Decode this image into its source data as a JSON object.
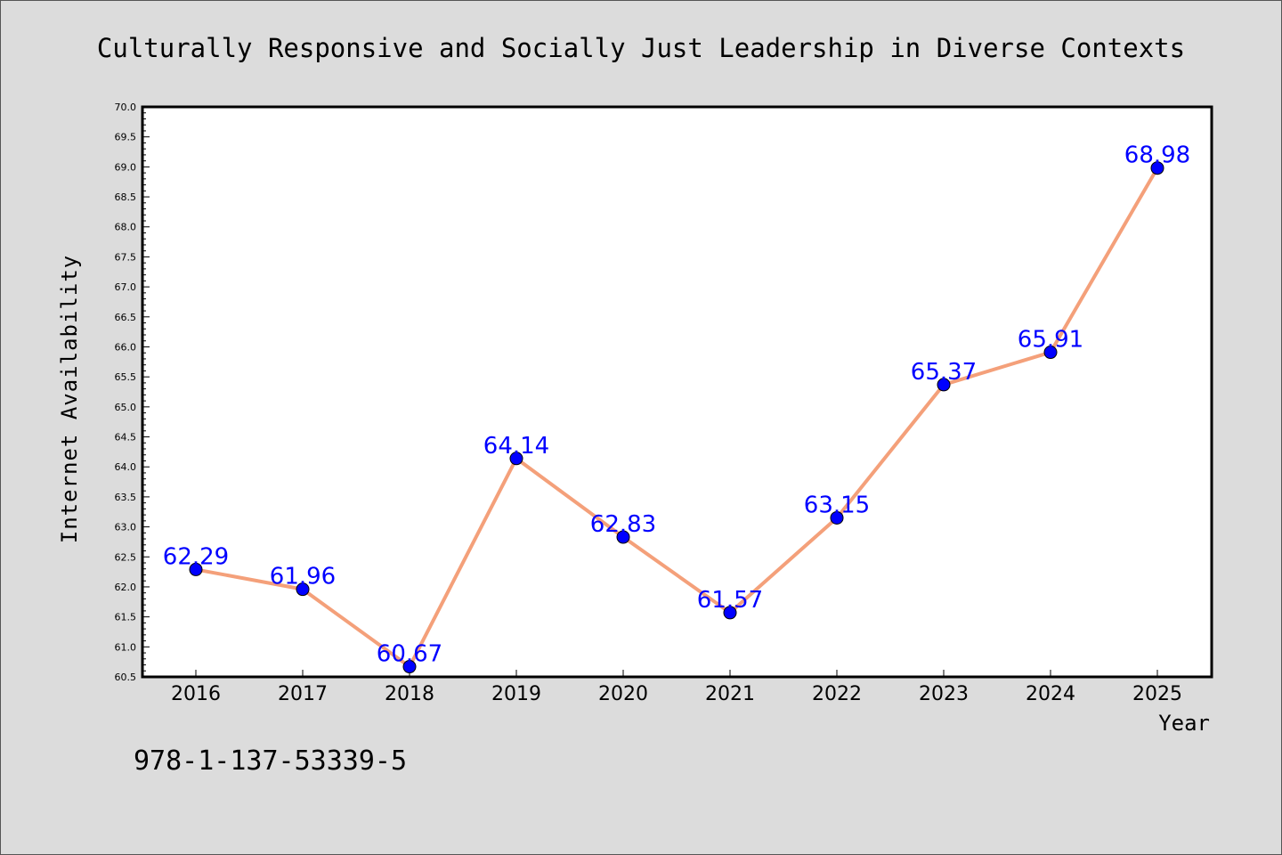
{
  "chart_data": {
    "type": "line",
    "title": "Culturally Responsive and Socially Just Leadership in Diverse Contexts",
    "xlabel": "Year",
    "ylabel": "Internet Availability",
    "categories": [
      "2016",
      "2017",
      "2018",
      "2019",
      "2020",
      "2021",
      "2022",
      "2023",
      "2024",
      "2025"
    ],
    "series": [
      {
        "values": [
          62.29,
          61.96,
          60.67,
          64.14,
          62.83,
          61.57,
          63.15,
          65.37,
          65.91,
          68.98
        ],
        "data_labels": [
          "62.29",
          "61.96",
          "60.67",
          "64.14",
          "62.83",
          "61.57",
          "63.15",
          "65.37",
          "65.91",
          "68.98"
        ],
        "line_color": "#f4a07a",
        "marker_color": "#0000ff"
      }
    ],
    "ylim": [
      60.5,
      70.0
    ],
    "yticks": [
      "60.5",
      "61.0",
      "61.5",
      "62.0",
      "62.5",
      "63.0",
      "63.5",
      "64.0",
      "64.5",
      "65.0",
      "65.5",
      "66.0",
      "66.5",
      "67.0",
      "67.5",
      "68.0",
      "68.5",
      "69.0",
      "69.5",
      "70.0"
    ],
    "grid": false,
    "legend": "none",
    "colors": {
      "background": "#dcdcdc",
      "plot_area": "#ffffff",
      "label": "#0000ff"
    }
  },
  "footer": {
    "isbn": "978-1-137-53339-5"
  }
}
